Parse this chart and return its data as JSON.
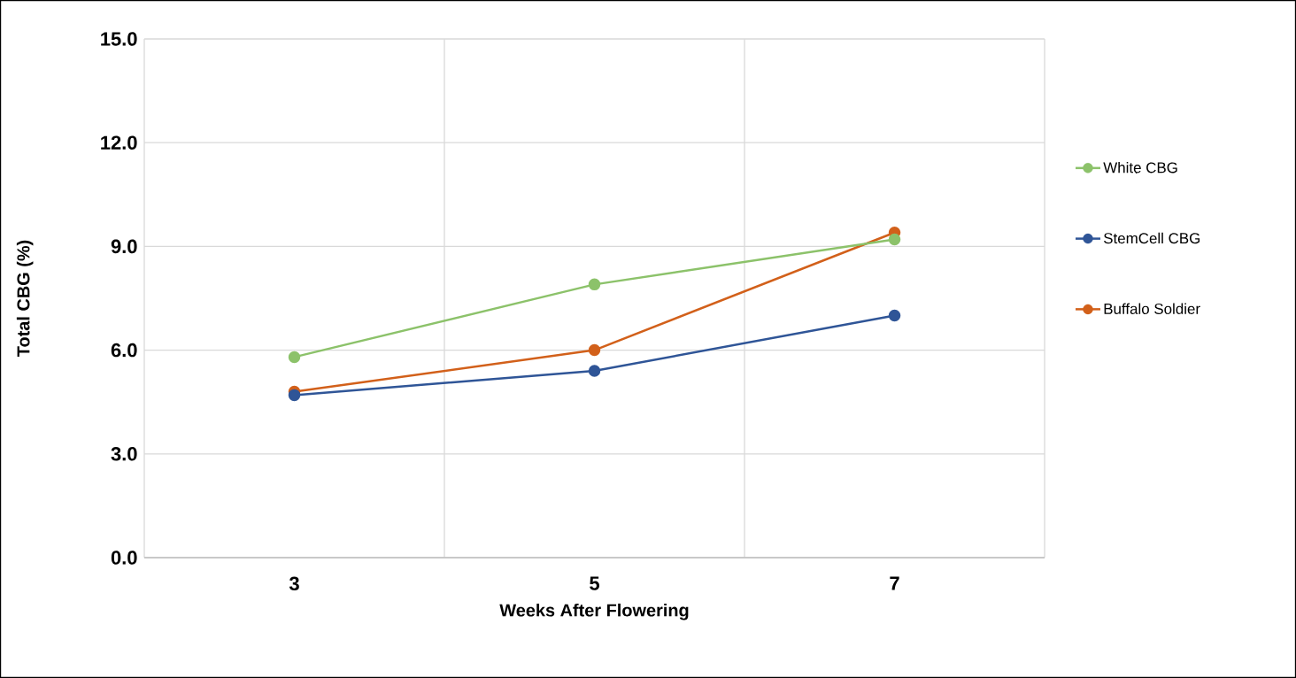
{
  "chart_data": {
    "type": "line",
    "xlabel": "Weeks After Flowering",
    "ylabel": "Total CBG (%)",
    "categories": [
      "3",
      "5",
      "7"
    ],
    "series": [
      {
        "name": "White CBG",
        "color": "#8cc26a",
        "values": [
          5.8,
          7.9,
          9.2
        ]
      },
      {
        "name": "StemCell CBG",
        "color": "#2f5597",
        "values": [
          4.7,
          5.4,
          7.0
        ]
      },
      {
        "name": "Buffalo Soldier",
        "color": "#d2601a",
        "values": [
          4.8,
          6.0,
          9.4
        ]
      }
    ],
    "ylim": [
      0,
      15
    ],
    "yticks": [
      {
        "value": 0,
        "label": "0.0"
      },
      {
        "value": 3,
        "label": "3.0"
      },
      {
        "value": 6,
        "label": "6.0"
      },
      {
        "value": 9,
        "label": "9.0"
      },
      {
        "value": 12,
        "label": "12.0"
      },
      {
        "value": 15,
        "label": "15.0"
      }
    ],
    "grid": true,
    "legend": "right",
    "marker": "circle",
    "line_style": "solid"
  }
}
